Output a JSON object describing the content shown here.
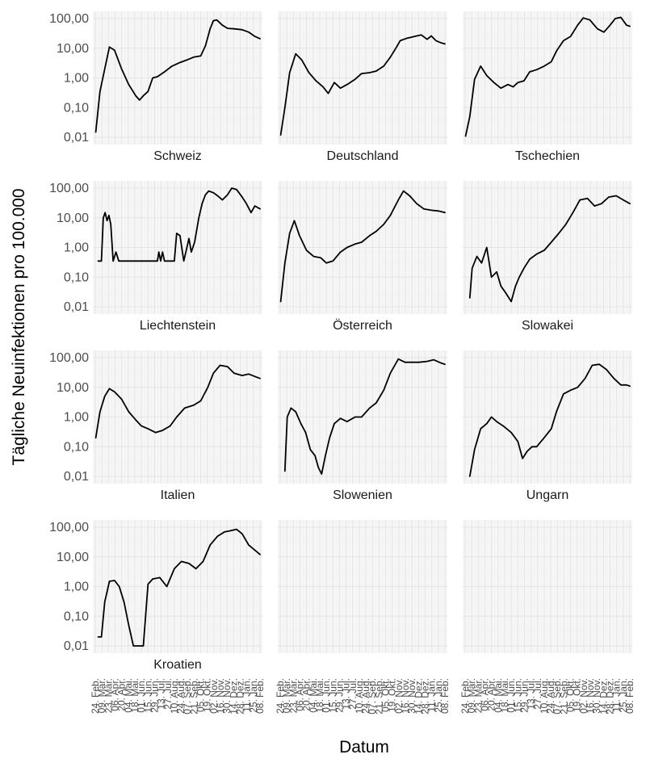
{
  "chart_data": {
    "type": "line",
    "facet": "small-multiples",
    "xlabel": "Datum",
    "ylabel": "Tägliche Neuinfektionen pro 100.000",
    "y_scale": "log10",
    "ylim": [
      0.01,
      100
    ],
    "y_tick_labels": [
      "100,00",
      "10,00",
      "1,00",
      "0,10",
      "0,01"
    ],
    "y_tick_values": [
      100,
      10,
      1,
      0.1,
      0.01
    ],
    "x_range": [
      "2020-02-24",
      "2021-02-08"
    ],
    "x_tick_labels": [
      "24. Feb.",
      "09. Mär.",
      "23. Mär.",
      "06. Apr.",
      "20. Apr.",
      "04. Mai.",
      "18. Mai.",
      "01. Jun.",
      "15. Jun.",
      "29. Jun.",
      "13. Jul.",
      "27. Jul.",
      "10. Aug.",
      "24. Aug.",
      "07. Sep.",
      "21. Sep.",
      "05. Okt.",
      "19. Okt.",
      "02. Nov.",
      "16. Nov.",
      "30. Nov.",
      "14. Dez.",
      "28. Dez.",
      "11. Jan.",
      "25. Jan.",
      "08. Feb."
    ],
    "grid": true,
    "legend": "none",
    "panels": [
      {
        "name": "Schweiz",
        "x": [
          "2020-02-25",
          "2020-03-05",
          "2020-03-15",
          "2020-03-25",
          "2020-04-05",
          "2020-04-20",
          "2020-05-05",
          "2020-05-20",
          "2020-05-28",
          "2020-06-05",
          "2020-06-15",
          "2020-06-25",
          "2020-07-05",
          "2020-07-20",
          "2020-08-05",
          "2020-08-20",
          "2020-09-05",
          "2020-09-20",
          "2020-10-05",
          "2020-10-15",
          "2020-10-25",
          "2020-11-01",
          "2020-11-08",
          "2020-11-20",
          "2020-12-01",
          "2020-12-15",
          "2021-01-01",
          "2021-01-15",
          "2021-01-28",
          "2021-02-08"
        ],
        "y": [
          0.015,
          0.35,
          2,
          11,
          8.5,
          2,
          0.6,
          0.25,
          0.18,
          0.25,
          0.35,
          1,
          1.1,
          1.6,
          2.5,
          3.2,
          4,
          5,
          5.5,
          12,
          45,
          85,
          90,
          60,
          47,
          45,
          42,
          35,
          25,
          21
        ]
      },
      {
        "name": "Deutschland",
        "x": [
          "2020-02-25",
          "2020-03-05",
          "2020-03-15",
          "2020-03-28",
          "2020-04-10",
          "2020-04-25",
          "2020-05-10",
          "2020-05-25",
          "2020-06-05",
          "2020-06-18",
          "2020-07-01",
          "2020-07-15",
          "2020-08-01",
          "2020-08-15",
          "2020-09-01",
          "2020-09-15",
          "2020-10-01",
          "2020-10-15",
          "2020-10-25",
          "2020-11-05",
          "2020-11-20",
          "2020-12-01",
          "2020-12-10",
          "2020-12-20",
          "2021-01-01",
          "2021-01-10",
          "2021-01-20",
          "2021-02-01",
          "2021-02-08"
        ],
        "y": [
          0.012,
          0.1,
          1.5,
          6.5,
          4,
          1.5,
          0.8,
          0.5,
          0.3,
          0.7,
          0.45,
          0.6,
          0.9,
          1.4,
          1.5,
          1.7,
          2.5,
          5,
          9,
          18,
          22,
          24,
          26,
          28,
          20,
          26,
          18,
          15,
          14
        ]
      },
      {
        "name": "Tschechien",
        "x": [
          "2020-02-25",
          "2020-03-05",
          "2020-03-15",
          "2020-03-28",
          "2020-04-10",
          "2020-04-25",
          "2020-05-10",
          "2020-05-25",
          "2020-06-05",
          "2020-06-15",
          "2020-06-28",
          "2020-07-10",
          "2020-07-25",
          "2020-08-10",
          "2020-08-25",
          "2020-09-05",
          "2020-09-20",
          "2020-10-05",
          "2020-10-20",
          "2020-11-01",
          "2020-11-15",
          "2020-12-01",
          "2020-12-15",
          "2020-12-28",
          "2021-01-08",
          "2021-01-20",
          "2021-02-01",
          "2021-02-08"
        ],
        "y": [
          0.011,
          0.05,
          0.9,
          2.5,
          1.2,
          0.7,
          0.45,
          0.6,
          0.5,
          0.7,
          0.8,
          1.6,
          1.9,
          2.5,
          3.5,
          8,
          18,
          25,
          60,
          105,
          90,
          45,
          35,
          60,
          100,
          110,
          60,
          55
        ]
      },
      {
        "name": "Liechtenstein",
        "x": [
          "2020-03-01",
          "2020-03-08",
          "2020-03-12",
          "2020-03-16",
          "2020-03-20",
          "2020-03-24",
          "2020-03-28",
          "2020-04-02",
          "2020-04-08",
          "2020-04-14",
          "2020-04-20",
          "2020-05-01",
          "2020-06-15",
          "2020-07-05",
          "2020-07-08",
          "2020-07-12",
          "2020-07-16",
          "2020-07-20",
          "2020-08-10",
          "2020-08-15",
          "2020-08-22",
          "2020-08-30",
          "2020-09-10",
          "2020-09-15",
          "2020-09-22",
          "2020-10-01",
          "2020-10-08",
          "2020-10-15",
          "2020-10-22",
          "2020-11-01",
          "2020-11-10",
          "2020-11-20",
          "2020-12-01",
          "2020-12-10",
          "2020-12-20",
          "2021-01-01",
          "2021-01-10",
          "2021-01-20",
          "2021-01-28",
          "2021-02-08"
        ],
        "y": [
          0.35,
          0.35,
          10,
          15,
          8,
          12,
          6,
          0.35,
          0.7,
          0.35,
          0.35,
          0.35,
          0.35,
          0.35,
          0.7,
          0.35,
          0.7,
          0.35,
          0.35,
          3,
          2.5,
          0.35,
          2,
          0.7,
          1.5,
          10,
          30,
          60,
          80,
          70,
          55,
          40,
          60,
          100,
          90,
          50,
          30,
          15,
          25,
          20
        ]
      },
      {
        "name": "Österreich",
        "x": [
          "2020-02-25",
          "2020-03-05",
          "2020-03-15",
          "2020-03-25",
          "2020-04-05",
          "2020-04-20",
          "2020-05-05",
          "2020-05-20",
          "2020-06-01",
          "2020-06-15",
          "2020-07-01",
          "2020-07-15",
          "2020-08-01",
          "2020-08-15",
          "2020-09-01",
          "2020-09-15",
          "2020-10-01",
          "2020-10-15",
          "2020-11-01",
          "2020-11-12",
          "2020-11-25",
          "2020-12-10",
          "2020-12-25",
          "2021-01-10",
          "2021-01-25",
          "2021-02-08"
        ],
        "y": [
          0.015,
          0.3,
          3,
          8,
          2.5,
          0.8,
          0.5,
          0.45,
          0.3,
          0.35,
          0.7,
          1,
          1.3,
          1.5,
          2.5,
          3.5,
          6,
          12,
          40,
          80,
          55,
          30,
          20,
          18,
          17,
          15
        ]
      },
      {
        "name": "Slowakei",
        "x": [
          "2020-03-05",
          "2020-03-10",
          "2020-03-20",
          "2020-03-30",
          "2020-04-10",
          "2020-04-20",
          "2020-05-01",
          "2020-05-10",
          "2020-05-20",
          "2020-06-01",
          "2020-06-10",
          "2020-06-18",
          "2020-06-28",
          "2020-07-10",
          "2020-07-25",
          "2020-08-10",
          "2020-08-25",
          "2020-09-10",
          "2020-09-25",
          "2020-10-10",
          "2020-10-25",
          "2020-11-10",
          "2020-11-25",
          "2020-12-10",
          "2020-12-25",
          "2021-01-10",
          "2021-01-25",
          "2021-02-08"
        ],
        "y": [
          0.02,
          0.2,
          0.5,
          0.3,
          1,
          0.1,
          0.15,
          0.05,
          0.03,
          0.015,
          0.05,
          0.1,
          0.2,
          0.4,
          0.6,
          0.8,
          1.5,
          3,
          6,
          15,
          40,
          45,
          25,
          30,
          50,
          55,
          40,
          30
        ]
      },
      {
        "name": "Italien",
        "x": [
          "2020-02-25",
          "2020-03-05",
          "2020-03-15",
          "2020-03-25",
          "2020-04-05",
          "2020-04-20",
          "2020-05-05",
          "2020-05-20",
          "2020-06-01",
          "2020-06-15",
          "2020-07-01",
          "2020-07-15",
          "2020-08-01",
          "2020-08-15",
          "2020-09-01",
          "2020-09-20",
          "2020-10-05",
          "2020-10-20",
          "2020-11-01",
          "2020-11-15",
          "2020-12-01",
          "2020-12-15",
          "2021-01-01",
          "2021-01-15",
          "2021-02-01",
          "2021-02-08"
        ],
        "y": [
          0.2,
          1.5,
          5,
          9,
          7,
          4,
          1.5,
          0.8,
          0.5,
          0.4,
          0.3,
          0.35,
          0.5,
          1,
          2,
          2.5,
          3.5,
          10,
          30,
          55,
          50,
          30,
          25,
          28,
          22,
          20
        ]
      },
      {
        "name": "Slowenien",
        "x": [
          "2020-03-05",
          "2020-03-10",
          "2020-03-18",
          "2020-03-28",
          "2020-04-08",
          "2020-04-18",
          "2020-04-28",
          "2020-05-08",
          "2020-05-15",
          "2020-05-22",
          "2020-05-30",
          "2020-06-08",
          "2020-06-18",
          "2020-07-01",
          "2020-07-15",
          "2020-08-01",
          "2020-08-15",
          "2020-09-01",
          "2020-09-15",
          "2020-10-01",
          "2020-10-15",
          "2020-11-01",
          "2020-11-15",
          "2020-12-01",
          "2020-12-15",
          "2021-01-01",
          "2021-01-15",
          "2021-02-01",
          "2021-02-08"
        ],
        "y": [
          0.015,
          1,
          2,
          1.5,
          0.6,
          0.3,
          0.08,
          0.05,
          0.02,
          0.012,
          0.05,
          0.2,
          0.6,
          0.9,
          0.7,
          1,
          1,
          2,
          3,
          8,
          30,
          90,
          70,
          70,
          70,
          75,
          85,
          65,
          60
        ]
      },
      {
        "name": "Ungarn",
        "x": [
          "2020-03-05",
          "2020-03-15",
          "2020-03-28",
          "2020-04-10",
          "2020-04-20",
          "2020-05-01",
          "2020-05-15",
          "2020-06-01",
          "2020-06-15",
          "2020-06-25",
          "2020-07-05",
          "2020-07-15",
          "2020-07-25",
          "2020-08-10",
          "2020-08-25",
          "2020-09-05",
          "2020-09-20",
          "2020-10-05",
          "2020-10-20",
          "2020-11-05",
          "2020-11-20",
          "2020-12-05",
          "2020-12-20",
          "2021-01-05",
          "2021-01-20",
          "2021-02-01",
          "2021-02-08"
        ],
        "y": [
          0.01,
          0.08,
          0.4,
          0.6,
          1,
          0.7,
          0.5,
          0.3,
          0.15,
          0.04,
          0.07,
          0.1,
          0.1,
          0.2,
          0.4,
          1.5,
          6,
          8,
          10,
          20,
          55,
          60,
          40,
          20,
          12,
          12,
          11
        ]
      },
      {
        "name": "Kroatien",
        "x": [
          "2020-03-01",
          "2020-03-08",
          "2020-03-15",
          "2020-03-25",
          "2020-04-05",
          "2020-04-15",
          "2020-04-25",
          "2020-05-05",
          "2020-05-15",
          "2020-05-25",
          "2020-06-05",
          "2020-06-15",
          "2020-06-25",
          "2020-07-10",
          "2020-07-25",
          "2020-08-10",
          "2020-08-25",
          "2020-09-10",
          "2020-09-25",
          "2020-10-10",
          "2020-10-25",
          "2020-11-10",
          "2020-11-25",
          "2020-12-05",
          "2020-12-20",
          "2021-01-01",
          "2021-01-15",
          "2021-02-01",
          "2021-02-08"
        ],
        "y": [
          0.02,
          0.02,
          0.3,
          1.5,
          1.6,
          1,
          0.3,
          0.05,
          0.01,
          0.01,
          0.01,
          1.2,
          1.8,
          2,
          1,
          4,
          7,
          6,
          4,
          7,
          25,
          50,
          70,
          75,
          85,
          60,
          25,
          15,
          12
        ]
      },
      {
        "name": "",
        "x": [],
        "y": []
      },
      {
        "name": "",
        "x": [],
        "y": []
      }
    ]
  }
}
